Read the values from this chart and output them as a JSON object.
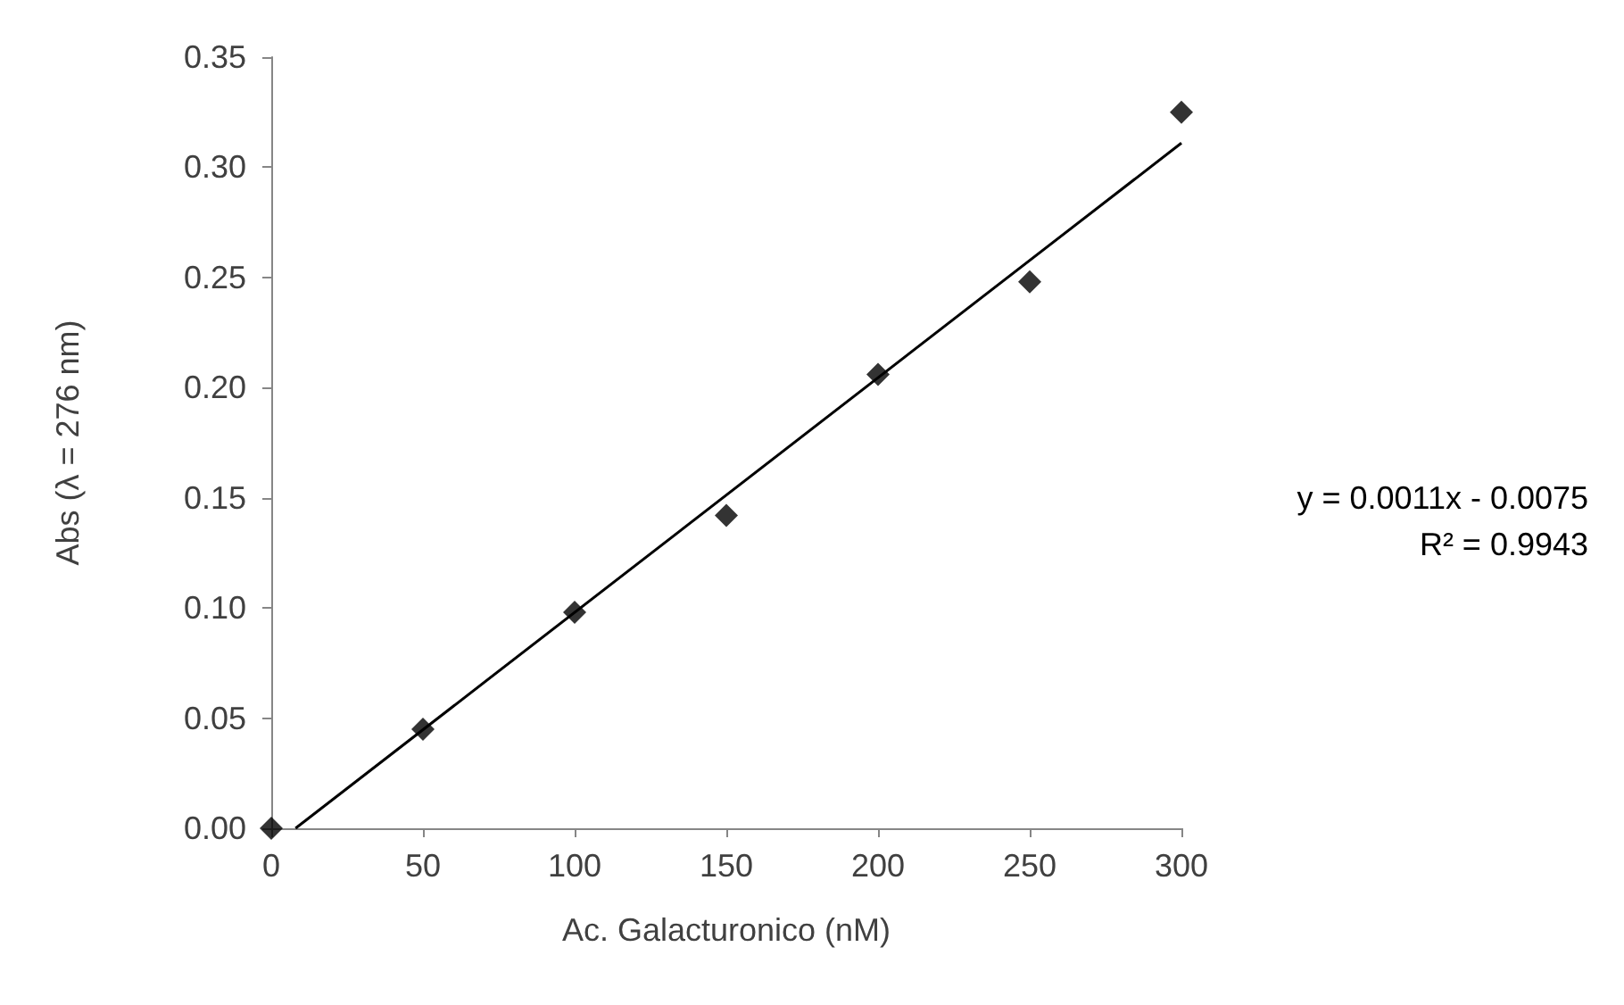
{
  "chart_data": {
    "type": "scatter",
    "xlabel": "Ac. Galacturonico (nM)",
    "ylabel": "Abs (λ = 276 nm)",
    "annotations": [
      "y = 0.0011x - 0.0075",
      "R² = 0.9943"
    ],
    "series": [
      {
        "color": "#000000",
        "marker": "diamond",
        "x": [
          0,
          50,
          100,
          150,
          200,
          250,
          300
        ],
        "values": [
          0,
          0.045,
          0.098,
          0.142,
          0.206,
          0.248,
          0.325
        ]
      },
      {
        "type": "line",
        "color": "#000000",
        "marker": "none",
        "line_style": "solid",
        "x": [
          8,
          300
        ],
        "values": [
          0,
          0.311
        ]
      }
    ],
    "xlim": [
      0,
      300
    ],
    "xticks": [
      0,
      50,
      100,
      150,
      200,
      250,
      300
    ],
    "ylim": [
      0,
      0.35
    ],
    "yticks": [
      {
        "value": 0,
        "label": "0.00"
      },
      {
        "value": 0.05,
        "label": "0.05"
      },
      {
        "value": 0.1,
        "label": "0.10"
      },
      {
        "value": 0.15,
        "label": "0.15"
      },
      {
        "value": 0.2,
        "label": "0.20"
      },
      {
        "value": 0.25,
        "label": "0.25"
      },
      {
        "value": 0.3,
        "label": "0.30"
      },
      {
        "value": 0.35,
        "label": "0.35"
      }
    ],
    "grid": false
  }
}
